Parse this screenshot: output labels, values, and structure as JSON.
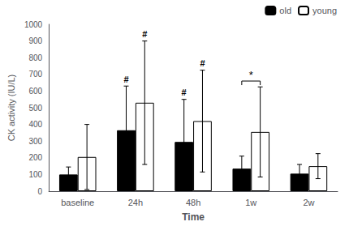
{
  "chart_data": {
    "type": "bar",
    "categories": [
      "baseline",
      "24h",
      "48h",
      "1w",
      "2w"
    ],
    "series": [
      {
        "name": "old",
        "color": "#000000",
        "values": [
          100,
          365,
          295,
          135,
          105
        ],
        "errors": [
          45,
          265,
          255,
          75,
          55
        ]
      },
      {
        "name": "young",
        "color": "#ffffff",
        "values": [
          205,
          530,
          420,
          355,
          150
        ],
        "errors": [
          195,
          370,
          305,
          270,
          75
        ]
      }
    ],
    "xlabel": "Time",
    "ylabel": "CK activity (IU/L)",
    "ylim": [
      0,
      1000
    ],
    "yticks": [
      0,
      100,
      200,
      300,
      400,
      500,
      600,
      700,
      800,
      900,
      1000
    ],
    "grid": false,
    "legend": "upper right",
    "annotations": [
      {
        "text": "#",
        "series": "old",
        "category": "24h"
      },
      {
        "text": "#",
        "series": "old",
        "category": "48h"
      },
      {
        "text": "#",
        "series": "young",
        "category": "24h"
      },
      {
        "text": "#",
        "series": "young",
        "category": "48h"
      }
    ],
    "bracket": {
      "text": "*",
      "category": "1w",
      "y": 660
    }
  }
}
